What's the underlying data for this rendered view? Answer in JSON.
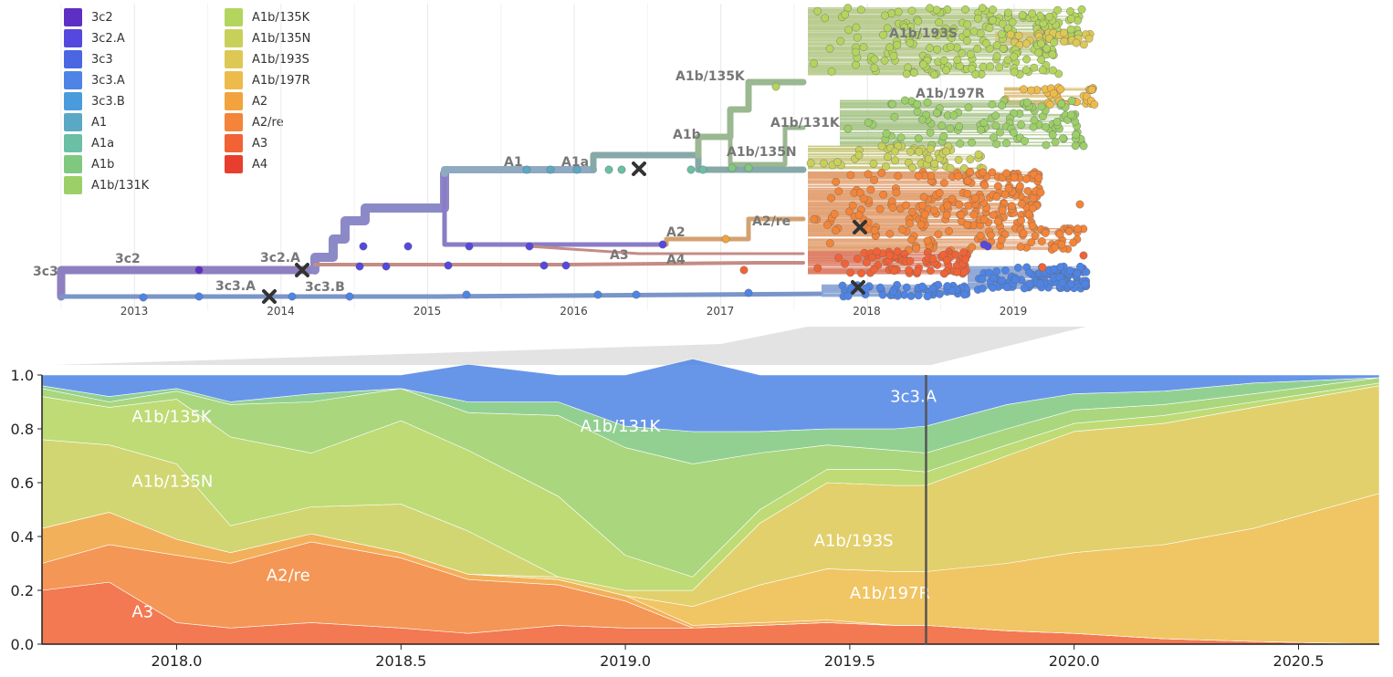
{
  "clade_colors": {
    "3c2": "#5E2FC4",
    "3c2.A": "#5548DE",
    "3c3": "#4A66E3",
    "3c3.A": "#4D84E6",
    "3c3.B": "#4A9BDD",
    "A1": "#5AA8C4",
    "A1a": "#6ABFA5",
    "A1b": "#80C880",
    "A1b/131K": "#9CCF68",
    "A1b/135K": "#B3D55E",
    "A1b/135N": "#C9D05A",
    "A1b/193S": "#DDC854",
    "A1b/197R": "#EEBB4A",
    "A2": "#F2A33E",
    "A2/re": "#F38438",
    "A3": "#F26234",
    "A4": "#E93E2D"
  },
  "legend": {
    "items": [
      {
        "label": "3c2",
        "color": "#5E2FC4"
      },
      {
        "label": "3c2.A",
        "color": "#5548DE"
      },
      {
        "label": "3c3",
        "color": "#4A66E3"
      },
      {
        "label": "3c3.A",
        "color": "#4D84E6"
      },
      {
        "label": "3c3.B",
        "color": "#4A9BDD"
      },
      {
        "label": "A1",
        "color": "#5AA8C4"
      },
      {
        "label": "A1a",
        "color": "#6ABFA5"
      },
      {
        "label": "A1b",
        "color": "#80C880"
      },
      {
        "label": "A1b/131K",
        "color": "#9CCF68"
      },
      {
        "label": "A1b/135K",
        "color": "#B3D55E"
      },
      {
        "label": "A1b/135N",
        "color": "#C9D05A"
      },
      {
        "label": "A1b/193S",
        "color": "#DDC854"
      },
      {
        "label": "A1b/197R",
        "color": "#EEBB4A"
      },
      {
        "label": "A2",
        "color": "#F2A33E"
      },
      {
        "label": "A2/re",
        "color": "#F38438"
      },
      {
        "label": "A3",
        "color": "#F26234"
      },
      {
        "label": "A4",
        "color": "#E93E2D"
      }
    ]
  },
  "tree": {
    "x_ticks": [
      "2013",
      "2014",
      "2015",
      "2016",
      "2017",
      "2018",
      "2019"
    ],
    "clade_labels": [
      {
        "text": "3c3",
        "key": "3c3",
        "color": "#777777"
      },
      {
        "text": "3c2",
        "key": "3c2",
        "color": "#777777"
      },
      {
        "text": "3c2.A",
        "key": "3c2.A",
        "color": "#777777"
      },
      {
        "text": "3c3.A",
        "key": "3c3.A",
        "color": "#777777"
      },
      {
        "text": "3c3.B",
        "key": "3c3.B",
        "color": "#777777"
      },
      {
        "text": "A1",
        "key": "A1",
        "color": "#777777"
      },
      {
        "text": "A1a",
        "key": "A1a",
        "color": "#777777"
      },
      {
        "text": "A1b",
        "key": "A1b",
        "color": "#777777"
      },
      {
        "text": "A1b/135K",
        "key": "A1b/135K",
        "color": "#777777"
      },
      {
        "text": "A1b/193S",
        "key": "A1b/193S",
        "color": "#777777"
      },
      {
        "text": "A1b/197R",
        "key": "A1b/197R",
        "color": "#777777"
      },
      {
        "text": "A1b/131K",
        "key": "A1b/131K",
        "color": "#777777"
      },
      {
        "text": "A1b/135N",
        "key": "A1b/135N",
        "color": "#777777"
      },
      {
        "text": "A2",
        "key": "A2",
        "color": "#777777"
      },
      {
        "text": "A2/re",
        "key": "A2/re",
        "color": "#777777"
      },
      {
        "text": "A3",
        "key": "A3",
        "color": "#777777"
      },
      {
        "text": "A4",
        "key": "A4",
        "color": "#777777"
      }
    ]
  },
  "chart_data": {
    "type": "area",
    "stacked": true,
    "normalized": true,
    "x": [
      2017.7,
      2017.85,
      2018.0,
      2018.12,
      2018.3,
      2018.5,
      2018.65,
      2018.85,
      2019.0,
      2019.15,
      2019.3,
      2019.45,
      2019.6,
      2019.67,
      2019.85,
      2020.0,
      2020.2,
      2020.4,
      2020.68
    ],
    "xlim": [
      2017.7,
      2020.68
    ],
    "ylim": [
      0,
      1
    ],
    "x_ticks": [
      "2018.0",
      "2018.5",
      "2019.0",
      "2019.5",
      "2020.0",
      "2020.5"
    ],
    "y_ticks": [
      "0.0",
      "0.2",
      "0.4",
      "0.6",
      "0.8",
      "1.0"
    ],
    "current_x": 2019.67,
    "series": [
      {
        "name": "A3",
        "values": [
          0.2,
          0.23,
          0.08,
          0.06,
          0.08,
          0.06,
          0.04,
          0.07,
          0.06,
          0.06,
          0.07,
          0.08,
          0.07,
          0.07,
          0.05,
          0.04,
          0.02,
          0.01,
          0.0
        ]
      },
      {
        "name": "A2/re",
        "values": [
          0.1,
          0.14,
          0.25,
          0.24,
          0.3,
          0.26,
          0.2,
          0.15,
          0.1,
          0.0,
          0.0,
          0.0,
          0.0,
          0.0,
          0.0,
          0.0,
          0.0,
          0.0,
          0.0
        ]
      },
      {
        "name": "A2",
        "values": [
          0.13,
          0.12,
          0.06,
          0.04,
          0.03,
          0.02,
          0.02,
          0.02,
          0.02,
          0.01,
          0.01,
          0.01,
          0.0,
          0.0,
          0.0,
          0.0,
          0.0,
          0.0,
          0.0
        ]
      },
      {
        "name": "A1b/197R",
        "values": [
          0.0,
          0.0,
          0.0,
          0.0,
          0.0,
          0.0,
          0.0,
          0.0,
          0.0,
          0.07,
          0.14,
          0.19,
          0.2,
          0.2,
          0.25,
          0.3,
          0.35,
          0.42,
          0.56
        ]
      },
      {
        "name": "A1b/193S",
        "values": [
          0.0,
          0.0,
          0.0,
          0.0,
          0.0,
          0.0,
          0.0,
          0.01,
          0.02,
          0.06,
          0.23,
          0.32,
          0.32,
          0.32,
          0.4,
          0.45,
          0.45,
          0.45,
          0.4
        ]
      },
      {
        "name": "A1b/135N",
        "values": [
          0.33,
          0.25,
          0.28,
          0.1,
          0.1,
          0.18,
          0.16,
          0.0,
          0.0,
          0.0,
          0.0,
          0.0,
          0.0,
          0.0,
          0.0,
          0.0,
          0.0,
          0.0,
          0.0
        ]
      },
      {
        "name": "A1b/135K",
        "values": [
          0.16,
          0.14,
          0.24,
          0.33,
          0.2,
          0.31,
          0.3,
          0.3,
          0.13,
          0.05,
          0.05,
          0.05,
          0.06,
          0.05,
          0.04,
          0.03,
          0.03,
          0.02,
          0.01
        ]
      },
      {
        "name": "A1b/131K",
        "values": [
          0.03,
          0.02,
          0.03,
          0.12,
          0.19,
          0.12,
          0.14,
          0.3,
          0.4,
          0.42,
          0.21,
          0.09,
          0.07,
          0.07,
          0.06,
          0.05,
          0.04,
          0.03,
          0.02
        ]
      },
      {
        "name": "A1b",
        "values": [
          0.01,
          0.02,
          0.01,
          0.01,
          0.03,
          0.0,
          0.04,
          0.05,
          0.08,
          0.12,
          0.08,
          0.06,
          0.08,
          0.1,
          0.09,
          0.06,
          0.05,
          0.04,
          0.0
        ]
      },
      {
        "name": "3c3.A",
        "values": [
          0.04,
          0.08,
          0.05,
          0.1,
          0.07,
          0.05,
          0.14,
          0.1,
          0.19,
          0.27,
          0.21,
          0.2,
          0.2,
          0.19,
          0.11,
          0.07,
          0.06,
          0.03,
          0.01
        ]
      }
    ],
    "area_labels": [
      {
        "text": "A1b/135K",
        "x": 2017.9,
        "y": 0.825
      },
      {
        "text": "A1b/135N",
        "x": 2017.9,
        "y": 0.585
      },
      {
        "text": "A3",
        "x": 2017.9,
        "y": 0.1
      },
      {
        "text": "A2/re",
        "x": 2018.2,
        "y": 0.235
      },
      {
        "text": "A1b/131K",
        "x": 2018.9,
        "y": 0.79
      },
      {
        "text": "3c3.A",
        "x": 2019.59,
        "y": 0.9
      },
      {
        "text": "A1b/193S",
        "x": 2019.42,
        "y": 0.365
      },
      {
        "text": "A1b/197R",
        "x": 2019.5,
        "y": 0.17
      }
    ]
  }
}
